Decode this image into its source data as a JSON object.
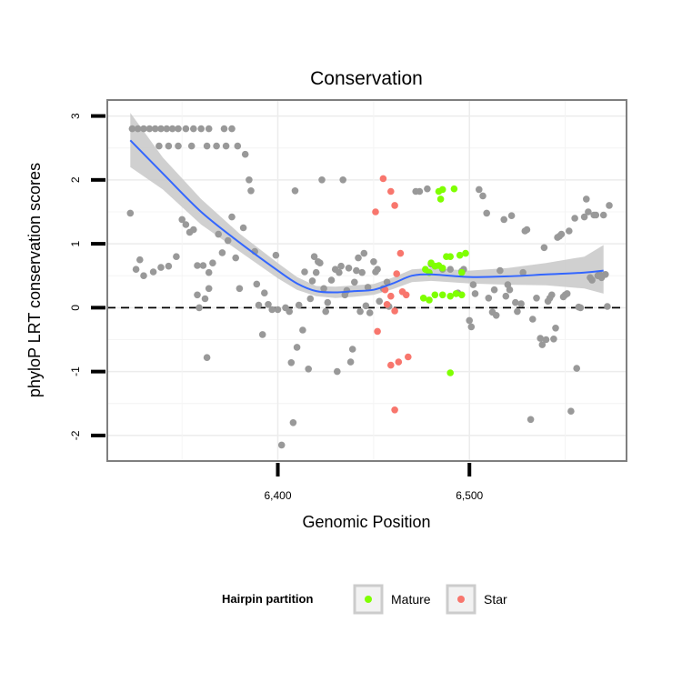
{
  "chart_data": {
    "type": "scatter",
    "title": "Conservation",
    "xlabel": "Genomic Position",
    "ylabel": "phyloP LRT conservation scores",
    "xlim": [
      6311,
      6582
    ],
    "ylim": [
      -2.4,
      3.25
    ],
    "x_ticks": [
      {
        "value": 6400,
        "label": "6,400"
      },
      {
        "value": 6500,
        "label": "6,500"
      }
    ],
    "y_ticks": [
      {
        "value": -2,
        "label": "-2"
      },
      {
        "value": -1,
        "label": "-1"
      },
      {
        "value": 0,
        "label": "0"
      },
      {
        "value": 1,
        "label": "1"
      },
      {
        "value": 2,
        "label": "2"
      },
      {
        "value": 3,
        "label": "3"
      }
    ],
    "reference_line": {
      "y": 0,
      "style": "dashed"
    },
    "grid": true,
    "legend": {
      "title": "Hairpin partition",
      "placement": "bottom",
      "entries": [
        {
          "name": "Mature",
          "color": "#7FFF00"
        },
        {
          "name": "Star",
          "color": "#F8766D"
        }
      ]
    },
    "colors": {
      "other": "#999999",
      "smooth": "#3366FF",
      "band": "#C8C8C8"
    },
    "series": [
      {
        "name": "",
        "color": "#999999",
        "points": [
          [
            6324,
            2.8
          ],
          [
            6327,
            2.8
          ],
          [
            6330,
            2.8
          ],
          [
            6333,
            2.8
          ],
          [
            6336,
            2.8
          ],
          [
            6339,
            2.8
          ],
          [
            6342,
            2.8
          ],
          [
            6345,
            2.8
          ],
          [
            6348,
            2.8
          ],
          [
            6352,
            2.8
          ],
          [
            6356,
            2.8
          ],
          [
            6360,
            2.8
          ],
          [
            6364,
            2.8
          ],
          [
            6372,
            2.8
          ],
          [
            6376,
            2.8
          ],
          [
            6338,
            2.53
          ],
          [
            6343,
            2.53
          ],
          [
            6348,
            2.53
          ],
          [
            6355,
            2.53
          ],
          [
            6363,
            2.53
          ],
          [
            6368,
            2.53
          ],
          [
            6373,
            2.53
          ],
          [
            6379,
            2.53
          ],
          [
            6383,
            2.4
          ],
          [
            6323,
            1.48
          ],
          [
            6326,
            0.6
          ],
          [
            6328,
            0.75
          ],
          [
            6330,
            0.5
          ],
          [
            6335,
            0.56
          ],
          [
            6339,
            0.63
          ],
          [
            6343,
            0.65
          ],
          [
            6347,
            0.8
          ],
          [
            6350,
            1.38
          ],
          [
            6352,
            1.3
          ],
          [
            6354,
            1.18
          ],
          [
            6356,
            1.22
          ],
          [
            6358,
            0.66
          ],
          [
            6361,
            0.66
          ],
          [
            6364,
            0.55
          ],
          [
            6366,
            0.7
          ],
          [
            6369,
            1.15
          ],
          [
            6371,
            0.86
          ],
          [
            6358,
            0.2
          ],
          [
            6359,
            0.0
          ],
          [
            6362,
            0.14
          ],
          [
            6364,
            0.3
          ],
          [
            6374,
            1.05
          ],
          [
            6376,
            1.42
          ],
          [
            6378,
            0.78
          ],
          [
            6380,
            0.3
          ],
          [
            6382,
            1.25
          ],
          [
            6385,
            2.0
          ],
          [
            6386,
            1.83
          ],
          [
            6388,
            0.88
          ],
          [
            6389,
            0.37
          ],
          [
            6363,
            -0.78
          ],
          [
            6390,
            0.04
          ],
          [
            6392,
            -0.42
          ],
          [
            6393,
            0.23
          ],
          [
            6395,
            0.05
          ],
          [
            6397,
            -0.03
          ],
          [
            6399,
            0.82
          ],
          [
            6400,
            -0.03
          ],
          [
            6402,
            -2.15
          ],
          [
            6404,
            0.0
          ],
          [
            6406,
            -0.06
          ],
          [
            6407,
            -0.86
          ],
          [
            6408,
            -1.8
          ],
          [
            6409,
            1.83
          ],
          [
            6410,
            -0.62
          ],
          [
            6411,
            0.04
          ],
          [
            6413,
            -0.35
          ],
          [
            6414,
            0.56
          ],
          [
            6416,
            -0.96
          ],
          [
            6417,
            0.14
          ],
          [
            6418,
            0.42
          ],
          [
            6419,
            0.8
          ],
          [
            6420,
            0.55
          ],
          [
            6421,
            0.72
          ],
          [
            6422,
            0.7
          ],
          [
            6423,
            2.0
          ],
          [
            6424,
            0.3
          ],
          [
            6425,
            -0.06
          ],
          [
            6426,
            0.08
          ],
          [
            6428,
            0.43
          ],
          [
            6430,
            0.6
          ],
          [
            6431,
            -1.0
          ],
          [
            6432,
            0.55
          ],
          [
            6433,
            0.65
          ],
          [
            6434,
            2.0
          ],
          [
            6435,
            0.2
          ],
          [
            6436,
            0.27
          ],
          [
            6437,
            0.62
          ],
          [
            6438,
            -0.85
          ],
          [
            6439,
            -0.65
          ],
          [
            6440,
            0.4
          ],
          [
            6441,
            0.58
          ],
          [
            6442,
            0.78
          ],
          [
            6443,
            -0.06
          ],
          [
            6444,
            0.55
          ],
          [
            6445,
            0.85
          ],
          [
            6446,
            0.03
          ],
          [
            6447,
            0.32
          ],
          [
            6448,
            -0.08
          ],
          [
            6450,
            0.72
          ],
          [
            6451,
            0.56
          ],
          [
            6452,
            0.6
          ],
          [
            6453,
            0.1
          ],
          [
            6455,
            0.3
          ],
          [
            6457,
            0.4
          ],
          [
            6458,
            0.02
          ],
          [
            6472,
            1.82
          ],
          [
            6474,
            1.82
          ],
          [
            6478,
            1.86
          ],
          [
            6480,
            0.68
          ],
          [
            6486,
            0.6
          ],
          [
            6490,
            0.6
          ],
          [
            6494,
            0.23
          ],
          [
            6496,
            0.57
          ],
          [
            6497,
            0.6
          ],
          [
            6500,
            -0.2
          ],
          [
            6501,
            -0.3
          ],
          [
            6502,
            0.36
          ],
          [
            6503,
            0.22
          ],
          [
            6505,
            1.85
          ],
          [
            6507,
            1.75
          ],
          [
            6509,
            1.48
          ],
          [
            6510,
            0.15
          ],
          [
            6512,
            -0.07
          ],
          [
            6513,
            0.28
          ],
          [
            6514,
            -0.12
          ],
          [
            6516,
            0.58
          ],
          [
            6518,
            1.38
          ],
          [
            6519,
            0.18
          ],
          [
            6520,
            0.36
          ],
          [
            6521,
            0.28
          ],
          [
            6522,
            1.44
          ],
          [
            6524,
            0.08
          ],
          [
            6525,
            -0.06
          ],
          [
            6527,
            0.06
          ],
          [
            6528,
            0.55
          ],
          [
            6529,
            1.2
          ],
          [
            6530,
            1.22
          ],
          [
            6532,
            -1.75
          ],
          [
            6533,
            -0.18
          ],
          [
            6535,
            0.15
          ],
          [
            6537,
            -0.48
          ],
          [
            6538,
            -0.58
          ],
          [
            6539,
            0.94
          ],
          [
            6540,
            -0.5
          ],
          [
            6541,
            0.1
          ],
          [
            6542,
            0.15
          ],
          [
            6543,
            0.2
          ],
          [
            6544,
            -0.49
          ],
          [
            6545,
            -0.32
          ],
          [
            6546,
            1.1
          ],
          [
            6547,
            1.12
          ],
          [
            6548,
            1.15
          ],
          [
            6549,
            0.17
          ],
          [
            6550,
            0.2
          ],
          [
            6551,
            0.22
          ],
          [
            6552,
            1.2
          ],
          [
            6553,
            -1.62
          ],
          [
            6555,
            1.4
          ],
          [
            6556,
            -0.95
          ],
          [
            6557,
            0.01
          ],
          [
            6558,
            0.0
          ],
          [
            6560,
            1.42
          ],
          [
            6561,
            1.7
          ],
          [
            6562,
            1.5
          ],
          [
            6563,
            0.47
          ],
          [
            6564,
            0.43
          ],
          [
            6565,
            1.45
          ],
          [
            6566,
            1.45
          ],
          [
            6567,
            0.5
          ],
          [
            6568,
            0.52
          ],
          [
            6569,
            0.47
          ],
          [
            6570,
            1.45
          ],
          [
            6571,
            0.52
          ],
          [
            6572,
            0.02
          ],
          [
            6573,
            1.6
          ]
        ]
      },
      {
        "name": "Star",
        "color": "#F8766D",
        "points": [
          [
            6455,
            2.02
          ],
          [
            6459,
            1.82
          ],
          [
            6451,
            1.5
          ],
          [
            6461,
            1.6
          ],
          [
            6464,
            0.85
          ],
          [
            6462,
            0.53
          ],
          [
            6456,
            0.28
          ],
          [
            6465,
            0.25
          ],
          [
            6467,
            0.2
          ],
          [
            6459,
            0.18
          ],
          [
            6457,
            0.05
          ],
          [
            6461,
            -0.05
          ],
          [
            6452,
            -0.37
          ],
          [
            6459,
            -0.9
          ],
          [
            6463,
            -0.85
          ],
          [
            6468,
            -0.77
          ],
          [
            6461,
            -1.6
          ]
        ]
      },
      {
        "name": "Mature",
        "color": "#7FFF00",
        "points": [
          [
            6486,
            1.85
          ],
          [
            6492,
            1.86
          ],
          [
            6484,
            1.82
          ],
          [
            6485,
            1.7
          ],
          [
            6488,
            0.8
          ],
          [
            6490,
            0.8
          ],
          [
            6495,
            0.82
          ],
          [
            6498,
            0.85
          ],
          [
            6480,
            0.7
          ],
          [
            6482,
            0.65
          ],
          [
            6484,
            0.66
          ],
          [
            6486,
            0.62
          ],
          [
            6477,
            0.6
          ],
          [
            6479,
            0.55
          ],
          [
            6496,
            0.55
          ],
          [
            6482,
            0.2
          ],
          [
            6486,
            0.2
          ],
          [
            6490,
            0.18
          ],
          [
            6493,
            0.22
          ],
          [
            6496,
            0.2
          ],
          [
            6476,
            0.15
          ],
          [
            6479,
            0.12
          ],
          [
            6490,
            -1.02
          ]
        ]
      }
    ],
    "smooth": {
      "x": [
        6323,
        6340,
        6360,
        6380,
        6400,
        6410,
        6420,
        6430,
        6440,
        6450,
        6460,
        6470,
        6480,
        6500,
        6520,
        6540,
        6560,
        6570
      ],
      "y": [
        2.62,
        2.1,
        1.5,
        1.02,
        0.58,
        0.38,
        0.26,
        0.24,
        0.26,
        0.28,
        0.38,
        0.5,
        0.52,
        0.48,
        0.49,
        0.52,
        0.55,
        0.58
      ],
      "lower": [
        2.2,
        1.85,
        1.3,
        0.88,
        0.46,
        0.28,
        0.18,
        0.15,
        0.17,
        0.2,
        0.29,
        0.4,
        0.42,
        0.38,
        0.36,
        0.35,
        0.3,
        0.22
      ],
      "upper": [
        3.05,
        2.35,
        1.7,
        1.16,
        0.7,
        0.48,
        0.34,
        0.33,
        0.35,
        0.37,
        0.47,
        0.6,
        0.62,
        0.58,
        0.62,
        0.7,
        0.8,
        0.98
      ]
    }
  }
}
